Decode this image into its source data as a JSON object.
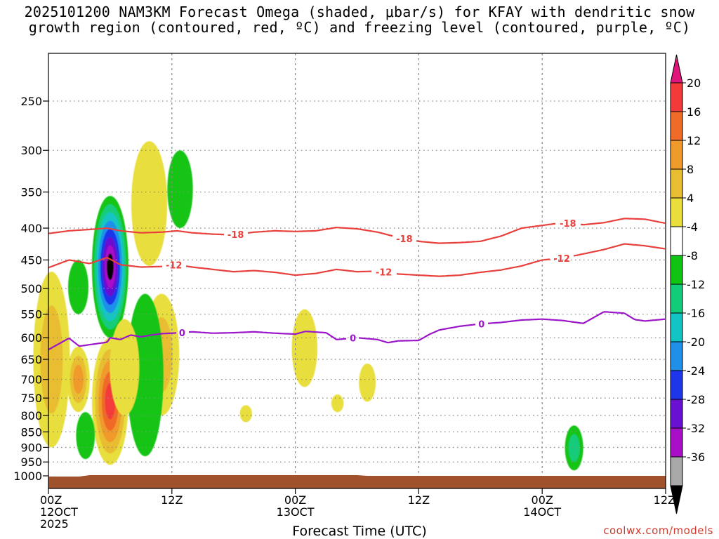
{
  "title": {
    "line1": "2025101200 NAM3KM Forecast Omega (shaded, μbar/s) for KFAY with dendritic snow",
    "line2": "growth region (contoured, red, ºC) and freezing level (contoured, purple, ºC)"
  },
  "credit": "coolwx.com/models",
  "colors": {
    "isotherm": "#e8403c",
    "freezing_level": "#9a16c8",
    "ground": "#a0522d",
    "grid": "#8a8a8a"
  },
  "colorbar": {
    "labels": [
      "20",
      "16",
      "12",
      "8",
      "4",
      "-4",
      "-8",
      "-12",
      "-16",
      "-20",
      "-24",
      "-28",
      "-32",
      "-36"
    ],
    "top_color": "#e0147a",
    "bottom_color": "#000000",
    "bands": [
      "#f23a3a",
      "#f06a28",
      "#ef9a2a",
      "#e9bd32",
      "#e8de3c",
      "#ffffff",
      "#12c412",
      "#12cc7a",
      "#12c4c4",
      "#1e90ea",
      "#1e36ea",
      "#6a10d0",
      "#a810c8",
      "#a8a8a8"
    ]
  },
  "chart_data": {
    "type": "heatmap",
    "title": "2025101200 NAM3KM Forecast Omega (shaded, μbar/s) for KFAY with dendritic snow growth region (contoured, red, ºC) and freezing level (contoured, purple, ºC)",
    "xlabel": "Forecast Time (UTC)",
    "ylabel": "",
    "x_unit": "forecast hour",
    "x_range": [
      0,
      60
    ],
    "y_range": [
      1000,
      200
    ],
    "y_scale": "log",
    "x_ticks": [
      {
        "hour": 0,
        "lines": [
          "00Z",
          "12OCT",
          "2025"
        ]
      },
      {
        "hour": 12,
        "lines": [
          "12Z"
        ]
      },
      {
        "hour": 24,
        "lines": [
          "00Z",
          "13OCT"
        ]
      },
      {
        "hour": 36,
        "lines": [
          "12Z"
        ]
      },
      {
        "hour": 48,
        "lines": [
          "00Z",
          "14OCT"
        ]
      },
      {
        "hour": 60,
        "lines": [
          "12Z"
        ]
      }
    ],
    "y_ticks": [
      250,
      300,
      350,
      400,
      450,
      500,
      550,
      600,
      650,
      700,
      750,
      800,
      850,
      900,
      950,
      1000
    ],
    "grid": true,
    "contours": [
      {
        "label": "-18",
        "color": "#e8403c",
        "points": [
          [
            0,
            408
          ],
          [
            2,
            404
          ],
          [
            4,
            402
          ],
          [
            5.7,
            400
          ],
          [
            7,
            404
          ],
          [
            9,
            407
          ],
          [
            11,
            406
          ],
          [
            12.5,
            404
          ],
          [
            14,
            407
          ],
          [
            16,
            409
          ],
          [
            18,
            410
          ],
          [
            20,
            406
          ],
          [
            22,
            404
          ],
          [
            24,
            405
          ],
          [
            26,
            404
          ],
          [
            28,
            399
          ],
          [
            30,
            401
          ],
          [
            32,
            406
          ],
          [
            34,
            414
          ],
          [
            36,
            420
          ],
          [
            38,
            423
          ],
          [
            40,
            422
          ],
          [
            42,
            420
          ],
          [
            44,
            412
          ],
          [
            46,
            400
          ],
          [
            48,
            396
          ],
          [
            50,
            392
          ],
          [
            52,
            395
          ],
          [
            54,
            392
          ],
          [
            56,
            386
          ],
          [
            58,
            387
          ],
          [
            60,
            393
          ]
        ],
        "label_hours": [
          18.2,
          34.6,
          50.5
        ]
      },
      {
        "label": "-12",
        "color": "#e8403c",
        "points": [
          [
            0,
            463
          ],
          [
            2,
            450
          ],
          [
            4,
            456
          ],
          [
            5.7,
            446
          ],
          [
            7,
            458
          ],
          [
            9,
            462
          ],
          [
            11,
            461
          ],
          [
            12.5,
            458
          ],
          [
            14,
            462
          ],
          [
            16,
            466
          ],
          [
            18,
            470
          ],
          [
            20,
            468
          ],
          [
            22,
            471
          ],
          [
            24,
            476
          ],
          [
            26,
            473
          ],
          [
            28,
            466
          ],
          [
            30,
            470
          ],
          [
            32,
            469
          ],
          [
            34,
            474
          ],
          [
            36,
            476
          ],
          [
            38,
            478
          ],
          [
            40,
            476
          ],
          [
            42,
            471
          ],
          [
            44,
            467
          ],
          [
            46,
            460
          ],
          [
            48,
            450
          ],
          [
            50,
            447
          ],
          [
            52,
            440
          ],
          [
            54,
            433
          ],
          [
            56,
            424
          ],
          [
            58,
            427
          ],
          [
            60,
            432
          ]
        ],
        "label_hours": [
          12.2,
          32.6,
          49.9
        ]
      },
      {
        "label": "0",
        "color": "#9a16c8",
        "points": [
          [
            0,
            627
          ],
          [
            2,
            601
          ],
          [
            3,
            619
          ],
          [
            5.7,
            610
          ],
          [
            6,
            600
          ],
          [
            7,
            604
          ],
          [
            8,
            594
          ],
          [
            9,
            598
          ],
          [
            10,
            594
          ],
          [
            11,
            591
          ],
          [
            12,
            590
          ],
          [
            14,
            587
          ],
          [
            16,
            590
          ],
          [
            18,
            589
          ],
          [
            20,
            587
          ],
          [
            22,
            590
          ],
          [
            24,
            592
          ],
          [
            25,
            586
          ],
          [
            27,
            589
          ],
          [
            28,
            604
          ],
          [
            30,
            600
          ],
          [
            32,
            604
          ],
          [
            33,
            611
          ],
          [
            34,
            607
          ],
          [
            36,
            606
          ],
          [
            37,
            593
          ],
          [
            38,
            583
          ],
          [
            40,
            575
          ],
          [
            42,
            570
          ],
          [
            44,
            567
          ],
          [
            46,
            562
          ],
          [
            48,
            560
          ],
          [
            50,
            563
          ],
          [
            52,
            569
          ],
          [
            54,
            545
          ],
          [
            56,
            548
          ],
          [
            57,
            561
          ],
          [
            58,
            564
          ],
          [
            60,
            560
          ]
        ],
        "label_hours": [
          13,
          29.6,
          42.1
        ]
      }
    ],
    "shaded_omega_regions": [
      {
        "center_hour": 6.0,
        "pressure_range": [
          355,
          600
        ],
        "peak": -36
      },
      {
        "center_hour": 6.0,
        "pressure_range": [
          600,
          960
        ],
        "peak": 20
      },
      {
        "center_hour": 2.9,
        "pressure_range": [
          620,
          790
        ],
        "peak": 12
      },
      {
        "center_hour": 2.9,
        "pressure_range": [
          450,
          550
        ],
        "peak": -8
      },
      {
        "center_hour": 0.3,
        "pressure_range": [
          470,
          900
        ],
        "peak": 8
      },
      {
        "center_hour": 3.6,
        "pressure_range": [
          790,
          940
        ],
        "peak": -8
      },
      {
        "center_hour": 9.8,
        "pressure_range": [
          290,
          460
        ],
        "peak": 4
      },
      {
        "center_hour": 11.0,
        "pressure_range": [
          510,
          800
        ],
        "peak": 8
      },
      {
        "center_hour": 9.4,
        "pressure_range": [
          510,
          930
        ],
        "peak": -8
      },
      {
        "center_hour": 12.8,
        "pressure_range": [
          300,
          400
        ],
        "peak": -8
      },
      {
        "center_hour": 7.4,
        "pressure_range": [
          560,
          800
        ],
        "peak": 4
      },
      {
        "center_hour": 24.9,
        "pressure_range": [
          540,
          720
        ],
        "peak": 4
      },
      {
        "center_hour": 31.0,
        "pressure_range": [
          660,
          760
        ],
        "peak": 4
      },
      {
        "center_hour": 28.1,
        "pressure_range": [
          740,
          790
        ],
        "peak": 4
      },
      {
        "center_hour": 19.2,
        "pressure_range": [
          770,
          820
        ],
        "peak": 4
      },
      {
        "center_hour": 51.1,
        "pressure_range": [
          830,
          980
        ],
        "peak": -12
      }
    ]
  }
}
